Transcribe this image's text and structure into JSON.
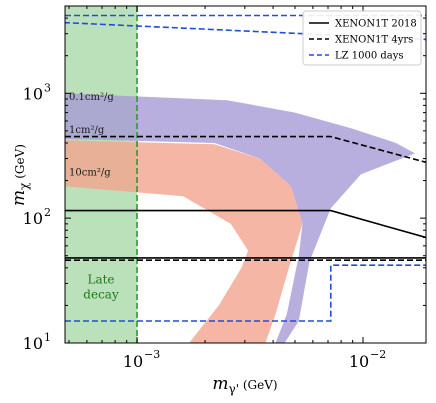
{
  "chart_data": {
    "type": "line",
    "xlabel": "m_{γ'} (GeV)",
    "ylabel": "m_χ (GeV)",
    "xlim": [
      0.00048,
      0.019
    ],
    "ylim": [
      10,
      5000
    ],
    "xscale": "log",
    "yscale": "log",
    "x_ticks": [
      {
        "value": 0.001,
        "base": "10",
        "exp": "−3"
      },
      {
        "value": 0.01,
        "base": "10",
        "exp": "−2"
      }
    ],
    "y_ticks": [
      {
        "value": 10,
        "base": "10",
        "exp": "1"
      },
      {
        "value": 100,
        "base": "10",
        "exp": "2"
      },
      {
        "value": 1000,
        "base": "10",
        "exp": "3"
      }
    ],
    "series": [
      {
        "name": "XENON1T 2018",
        "style": "solid",
        "color": "#000000",
        "x": [
          0.00048,
          0.0072,
          0.019
        ],
        "y": [
          115,
          115,
          70
        ]
      },
      {
        "name": "XENON1T 4yrs",
        "style": "dashed",
        "color": "#000000",
        "x": [
          0.00048,
          0.0072,
          0.019
        ],
        "y": [
          450,
          450,
          280
        ]
      },
      {
        "name": "LZ 1000 days",
        "style": "dashed",
        "color": "#1f4fd8",
        "x": [
          0.00048,
          0.019
        ],
        "y": [
          4200,
          4200
        ]
      }
    ],
    "extra_lines": [
      {
        "style": "solid",
        "color": "#000000",
        "x": [
          0.00048,
          0.019
        ],
        "y": [
          48,
          48
        ]
      },
      {
        "style": "dashed",
        "color": "#000000",
        "x": [
          0.00048,
          0.019
        ],
        "y": [
          46,
          46
        ]
      },
      {
        "style": "dashed",
        "color": "#1f4fd8",
        "x": [
          0.00048,
          0.0072,
          0.0072,
          0.019
        ],
        "y": [
          15,
          15,
          42,
          42
        ]
      },
      {
        "style": "dashed",
        "color": "#1f4fd8",
        "x": [
          0.0001,
          0.019
        ],
        "y": [
          4200,
          2700
        ]
      }
    ],
    "bands": [
      {
        "color": "#a89bd6",
        "polygon": [
          [
            0.00048,
            1000
          ],
          [
            0.0025,
            880
          ],
          [
            0.005,
            700
          ],
          [
            0.009,
            520
          ],
          [
            0.014,
            400
          ],
          [
            0.017,
            330
          ],
          [
            0.0098,
            225
          ],
          [
            0.0072,
            120
          ],
          [
            0.0058,
            45
          ],
          [
            0.0052,
            15
          ],
          [
            0.0045,
            10
          ],
          [
            0.0041,
            10
          ],
          [
            0.0046,
            17
          ],
          [
            0.0052,
            50
          ],
          [
            0.0054,
            90
          ],
          [
            0.0048,
            180
          ],
          [
            0.0035,
            300
          ],
          [
            0.0022,
            400
          ],
          [
            0.00048,
            430
          ]
        ]
      },
      {
        "color": "#f3a48f",
        "polygon": [
          [
            0.00048,
            420
          ],
          [
            0.0022,
            390
          ],
          [
            0.0035,
            300
          ],
          [
            0.0048,
            180
          ],
          [
            0.0054,
            90
          ],
          [
            0.0047,
            40
          ],
          [
            0.0041,
            17
          ],
          [
            0.0037,
            10
          ],
          [
            0.0017,
            10
          ],
          [
            0.0023,
            20
          ],
          [
            0.0029,
            40
          ],
          [
            0.0031,
            55
          ],
          [
            0.0026,
            90
          ],
          [
            0.0016,
            150
          ],
          [
            0.00048,
            180
          ]
        ]
      }
    ],
    "excluded_region": {
      "color": "#5cb85c",
      "x": [
        0.00048,
        0.001
      ],
      "label_lines": [
        "Late",
        "decay"
      ]
    },
    "annotations": [
      {
        "text": "0.1cm²/g",
        "x": 0.00049,
        "y": 880
      },
      {
        "text": "1cm²/g",
        "x": 0.00049,
        "y": 480
      },
      {
        "text": "10cm²/g",
        "x": 0.00049,
        "y": 220
      }
    ],
    "legend": {
      "placement": "top-right",
      "entries": [
        {
          "label": "XENON1T 2018",
          "style": "solid",
          "color": "#000000"
        },
        {
          "label": "XENON1T 4yrs",
          "style": "dashed",
          "color": "#000000"
        },
        {
          "label": "LZ 1000 days",
          "style": "dashed",
          "color": "#1f4fd8"
        }
      ]
    }
  }
}
